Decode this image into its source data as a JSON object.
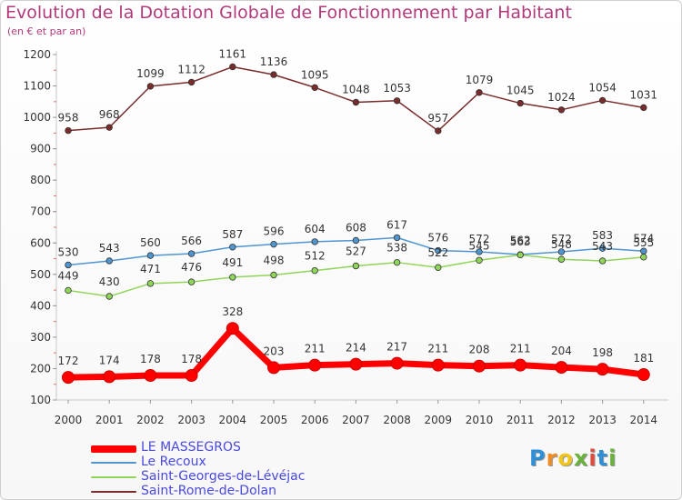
{
  "title": "Evolution de la Dotation Globale de Fonctionnement par Habitant",
  "subtitle": "(en € et par an)",
  "logo": {
    "letters": [
      "P",
      "r",
      "o",
      "x",
      "i",
      "t",
      "i"
    ],
    "colors": [
      "#2f8fd6",
      "#f08c1f",
      "#f0c419",
      "#6ab23b",
      "#e04a3f",
      "#2f8fd6",
      "#6ab23b"
    ]
  },
  "chart_data": {
    "type": "line",
    "categories": [
      "2000",
      "2001",
      "2002",
      "2003",
      "2004",
      "2005",
      "2006",
      "2007",
      "2008",
      "2009",
      "2010",
      "2011",
      "2012",
      "2013",
      "2014"
    ],
    "ylim": [
      100,
      1200
    ],
    "yticks": [
      100,
      200,
      300,
      400,
      500,
      600,
      700,
      800,
      900,
      1000,
      1100,
      1200
    ],
    "grid": false,
    "legend_position": "bottom-left",
    "series": [
      {
        "name": "LE MASSEGROS",
        "color": "#ff0000",
        "values": [
          172,
          174,
          178,
          178,
          328,
          203,
          211,
          214,
          217,
          211,
          208,
          211,
          204,
          198,
          181
        ]
      },
      {
        "name": "Le Recoux",
        "color": "#4f95cf",
        "values": [
          530,
          543,
          560,
          566,
          587,
          596,
          604,
          608,
          617,
          576,
          572,
          563,
          572,
          583,
          574
        ]
      },
      {
        "name": "Saint-Georges-de-Lévéjac",
        "color": "#8fd55a",
        "values": [
          449,
          430,
          471,
          476,
          491,
          498,
          512,
          527,
          538,
          522,
          545,
          562,
          548,
          543,
          555
        ]
      },
      {
        "name": "Saint-Rome-de-Dolan",
        "color": "#7a2b2b",
        "values": [
          958,
          968,
          1099,
          1112,
          1161,
          1136,
          1095,
          1048,
          1053,
          957,
          1079,
          1045,
          1024,
          1054,
          1031
        ]
      }
    ]
  }
}
